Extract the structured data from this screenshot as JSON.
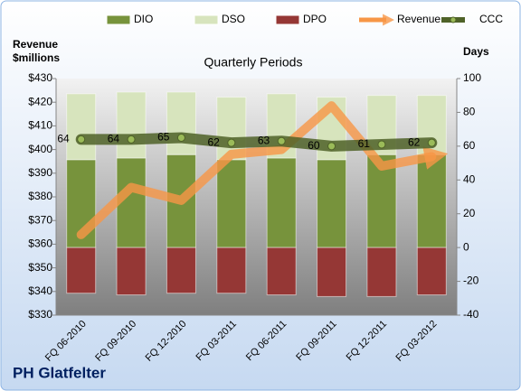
{
  "chart_data": {
    "type": "bar",
    "title": "Quarterly Periods",
    "y_label": [
      "Revenue",
      "$millions"
    ],
    "y2_label": "Days",
    "caption": "PH Glatfelter",
    "categories": [
      "FQ 06-2010",
      "FQ 09-2010",
      "FQ 12-2010",
      "FQ 03-2011",
      "FQ 06-2011",
      "FQ 09-2011",
      "FQ 12-2011",
      "FQ 03-2012"
    ],
    "ylim": [
      330,
      430
    ],
    "yticks": [
      {
        "value": 330,
        "label": "$330"
      },
      {
        "value": 340,
        "label": "$340"
      },
      {
        "value": 350,
        "label": "$350"
      },
      {
        "value": 360,
        "label": "$360"
      },
      {
        "value": 370,
        "label": "$370"
      },
      {
        "value": 380,
        "label": "$380"
      },
      {
        "value": 390,
        "label": "$390"
      },
      {
        "value": 400,
        "label": "$400"
      },
      {
        "value": 410,
        "label": "$410"
      },
      {
        "value": 420,
        "label": "$420"
      },
      {
        "value": 430,
        "label": "$430"
      }
    ],
    "y2lim": [
      -40,
      100
    ],
    "y2ticks": [
      -40,
      -20,
      0,
      20,
      40,
      60,
      80,
      100
    ],
    "series": [
      {
        "name": "DIO",
        "type": "bar",
        "axis": "y2",
        "color": "#77933c",
        "values": [
          52,
          53,
          55,
          52,
          53,
          52,
          55,
          55
        ]
      },
      {
        "name": "DSO",
        "type": "bar",
        "axis": "y2",
        "color": "#d7e4bd",
        "values": [
          39,
          39,
          37,
          37,
          38,
          37,
          35,
          35
        ]
      },
      {
        "name": "DPO",
        "type": "bar",
        "axis": "y2",
        "color": "#953735",
        "values": [
          -27,
          -28,
          -27,
          -27,
          -28,
          -29,
          -29,
          -28
        ]
      },
      {
        "name": "Revenue",
        "type": "line",
        "axis": "y",
        "color": "#f79646",
        "values": [
          364,
          384,
          378.5,
          398,
          400,
          418.5,
          393,
          397
        ]
      },
      {
        "name": "CCC",
        "type": "line",
        "axis": "y2",
        "color": "#4f6228",
        "values": [
          64,
          64,
          65,
          62,
          63,
          60,
          61,
          62
        ]
      }
    ]
  }
}
